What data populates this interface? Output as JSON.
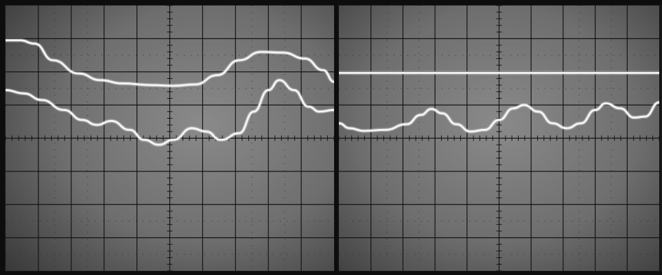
{
  "screens": [
    {
      "id": "left",
      "traces": [
        {
          "name": "upper",
          "color": "#ffffff",
          "points": [
            [
              0,
              2.95
            ],
            [
              0.4,
              2.95
            ],
            [
              0.8,
              2.85
            ],
            [
              1.3,
              2.35
            ],
            [
              2.0,
              1.95
            ],
            [
              2.6,
              1.75
            ],
            [
              3.2,
              1.65
            ],
            [
              4.0,
              1.6
            ],
            [
              4.6,
              1.58
            ],
            [
              5.2,
              1.62
            ],
            [
              5.8,
              1.9
            ],
            [
              6.4,
              2.35
            ],
            [
              7.0,
              2.6
            ],
            [
              7.6,
              2.58
            ],
            [
              8.2,
              2.4
            ],
            [
              8.7,
              2.05
            ],
            [
              9.0,
              1.7
            ]
          ]
        },
        {
          "name": "lower",
          "color": "#ffffff",
          "points": [
            [
              0,
              1.45
            ],
            [
              0.5,
              1.35
            ],
            [
              1.0,
              1.15
            ],
            [
              1.6,
              0.85
            ],
            [
              2.1,
              0.55
            ],
            [
              2.5,
              0.4
            ],
            [
              2.9,
              0.52
            ],
            [
              3.4,
              0.25
            ],
            [
              3.8,
              -0.05
            ],
            [
              4.2,
              -0.2
            ],
            [
              4.6,
              -0.05
            ],
            [
              5.1,
              0.3
            ],
            [
              5.5,
              0.2
            ],
            [
              5.9,
              -0.05
            ],
            [
              6.4,
              0.15
            ],
            [
              6.8,
              0.8
            ],
            [
              7.2,
              1.45
            ],
            [
              7.5,
              1.75
            ],
            [
              7.9,
              1.45
            ],
            [
              8.3,
              0.95
            ],
            [
              8.6,
              0.8
            ],
            [
              9.0,
              0.85
            ]
          ]
        }
      ]
    },
    {
      "id": "right",
      "traces": [
        {
          "name": "flat",
          "color": "#ffffff",
          "points": [
            [
              0,
              1.97
            ],
            [
              9.0,
              1.97
            ]
          ]
        },
        {
          "name": "ripple",
          "color": "#ffffff",
          "points": [
            [
              0,
              0.45
            ],
            [
              0.3,
              0.3
            ],
            [
              0.7,
              0.22
            ],
            [
              1.3,
              0.25
            ],
            [
              1.9,
              0.42
            ],
            [
              2.3,
              0.7
            ],
            [
              2.6,
              0.88
            ],
            [
              2.9,
              0.75
            ],
            [
              3.3,
              0.42
            ],
            [
              3.7,
              0.2
            ],
            [
              4.1,
              0.25
            ],
            [
              4.5,
              0.55
            ],
            [
              4.9,
              0.9
            ],
            [
              5.2,
              1.0
            ],
            [
              5.6,
              0.8
            ],
            [
              6.0,
              0.45
            ],
            [
              6.4,
              0.3
            ],
            [
              6.8,
              0.45
            ],
            [
              7.2,
              0.85
            ],
            [
              7.5,
              1.05
            ],
            [
              7.9,
              0.9
            ],
            [
              8.3,
              0.62
            ],
            [
              8.6,
              0.65
            ],
            [
              9.0,
              1.08
            ]
          ]
        }
      ]
    }
  ],
  "colors": {
    "grid": "#141414",
    "phosphor": "#f4f4f4",
    "bezel": "#0d0d0d"
  }
}
